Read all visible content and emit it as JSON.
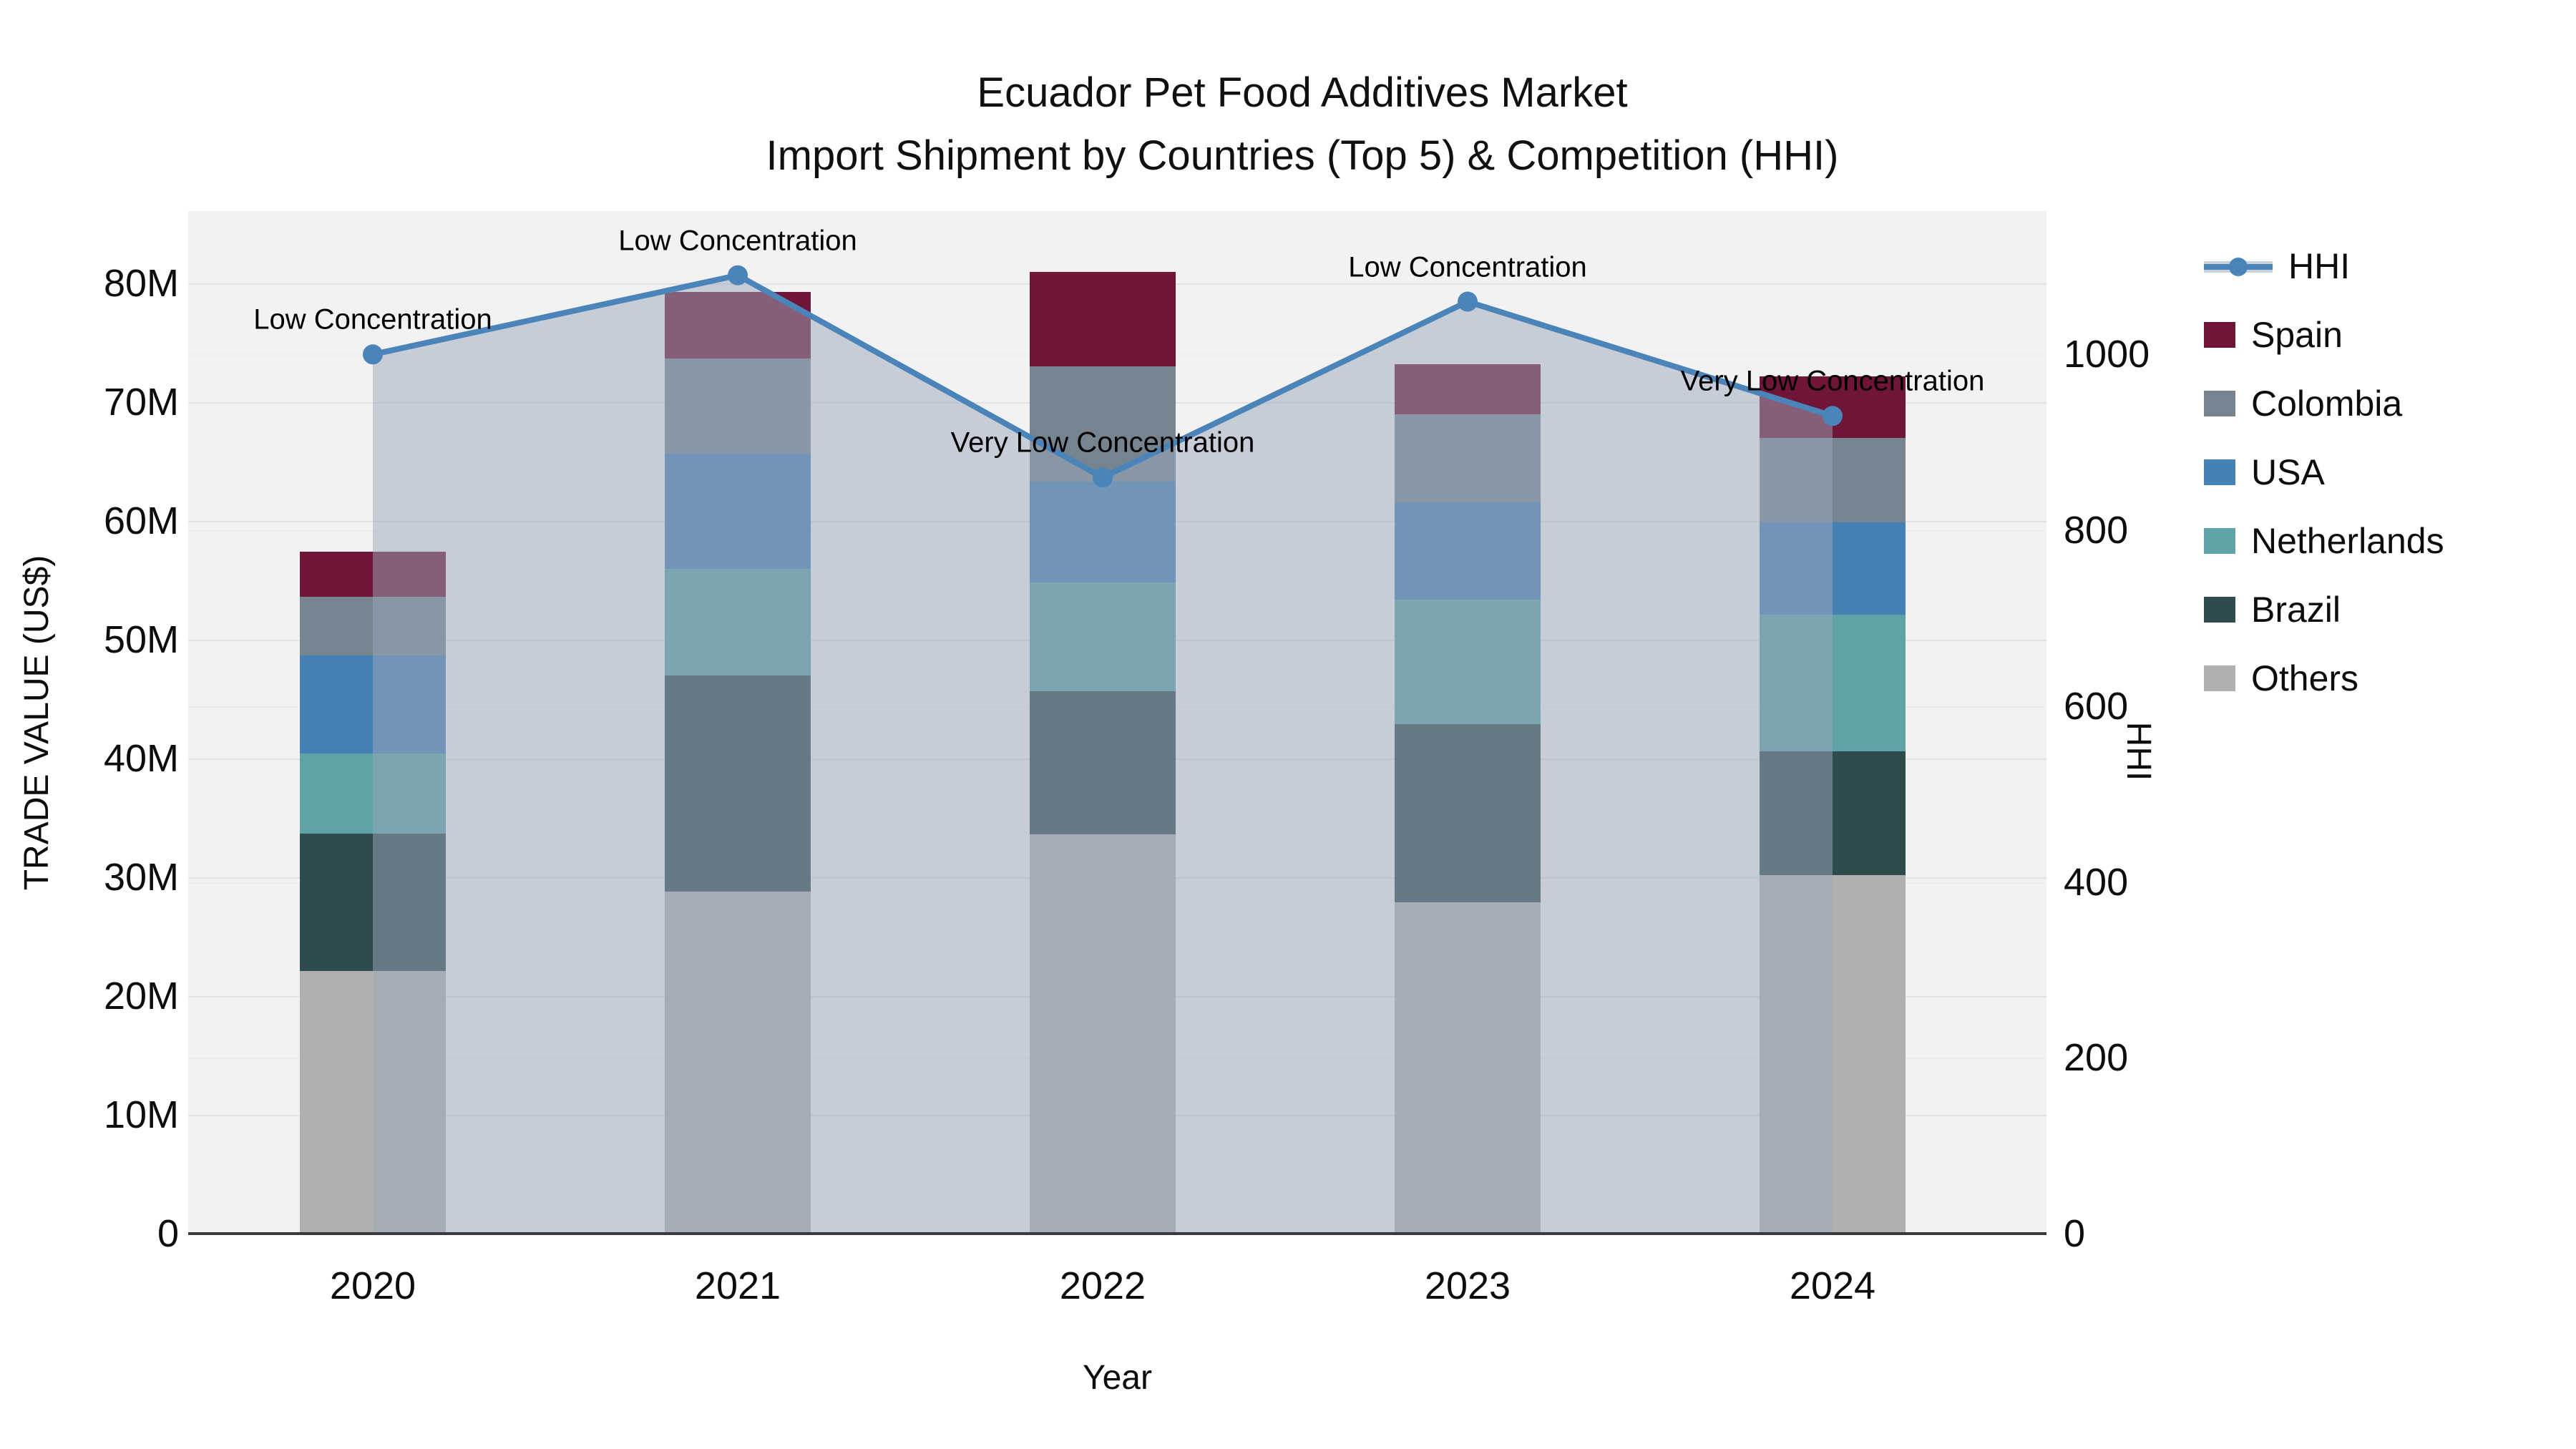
{
  "title": {
    "line1": "Ecuador Pet Food Additives Market",
    "line2": "Import Shipment by Countries (Top 5) & Competition (HHI)"
  },
  "left_axis": {
    "title": "TRADE VALUE (US$)",
    "tick_labels": [
      "0",
      "10M",
      "20M",
      "30M",
      "40M",
      "50M",
      "60M",
      "70M",
      "80M"
    ],
    "tick_values": [
      0,
      10,
      20,
      30,
      40,
      50,
      60,
      70,
      80
    ],
    "max": 86.1
  },
  "right_axis": {
    "title": "HHI",
    "tick_labels": [
      "0",
      "200",
      "400",
      "600",
      "800",
      "1000"
    ],
    "tick_values": [
      0,
      200,
      400,
      600,
      800,
      1000
    ],
    "max": 1163
  },
  "x_axis": {
    "title": "Year",
    "categories": [
      "2020",
      "2021",
      "2022",
      "2023",
      "2024"
    ]
  },
  "legend": [
    {
      "label": "HHI",
      "type": "line",
      "color": "#4a84b8"
    },
    {
      "label": "Spain",
      "type": "swatch",
      "color": "#6f1638"
    },
    {
      "label": "Colombia",
      "type": "swatch",
      "color": "#76848f"
    },
    {
      "label": "USA",
      "type": "swatch",
      "color": "#4681b5"
    },
    {
      "label": "Netherlands",
      "type": "swatch",
      "color": "#5fa3a6"
    },
    {
      "label": "Brazil",
      "type": "swatch",
      "color": "#2e4c4e"
    },
    {
      "label": "Others",
      "type": "swatch",
      "color": "#b0b0b0"
    }
  ],
  "chart_data": {
    "type": "bar",
    "subtype": "stacked-bar-with-line",
    "categories": [
      "2020",
      "2021",
      "2022",
      "2023",
      "2024"
    ],
    "bar_value_unit": "million US$",
    "stack_order_bottom_to_top": [
      "Others",
      "Brazil",
      "Netherlands",
      "USA",
      "Colombia",
      "Spain"
    ],
    "series": [
      {
        "name": "Others",
        "color": "#b0b0b0",
        "values": [
          22.1,
          28.8,
          33.6,
          27.9,
          30.2
        ]
      },
      {
        "name": "Brazil",
        "color": "#2e4c4e",
        "values": [
          11.6,
          18.2,
          12.1,
          15.0,
          10.4
        ]
      },
      {
        "name": "Netherlands",
        "color": "#5fa3a6",
        "values": [
          6.7,
          9.0,
          9.1,
          10.5,
          11.5
        ]
      },
      {
        "name": "USA",
        "color": "#4681b5",
        "values": [
          8.3,
          9.7,
          8.5,
          8.2,
          7.8
        ]
      },
      {
        "name": "Colombia",
        "color": "#76848f",
        "values": [
          4.9,
          8.0,
          9.7,
          7.4,
          7.1
        ]
      },
      {
        "name": "Spain",
        "color": "#6f1638",
        "values": [
          3.8,
          5.6,
          8.0,
          4.2,
          5.2
        ]
      }
    ],
    "bar_totals": [
      57.4,
      79.3,
      81.0,
      73.2,
      72.2
    ],
    "line": {
      "name": "HHI",
      "axis": "right",
      "color": "#4a84b8",
      "fill_color": "rgba(155,168,187,0.5)",
      "values": [
        1000,
        1090,
        860,
        1060,
        930
      ]
    },
    "annotations": [
      {
        "category": "2020",
        "text": "Low Concentration"
      },
      {
        "category": "2021",
        "text": "Low Concentration"
      },
      {
        "category": "2022",
        "text": "Very Low Concentration"
      },
      {
        "category": "2023",
        "text": "Low Concentration"
      },
      {
        "category": "2024",
        "text": "Very Low Concentration"
      }
    ],
    "ylim": [
      0,
      86.1
    ],
    "y2lim": [
      0,
      1163
    ],
    "grid": true,
    "legend_position": "right",
    "plot_background": "#f2f2f3"
  }
}
